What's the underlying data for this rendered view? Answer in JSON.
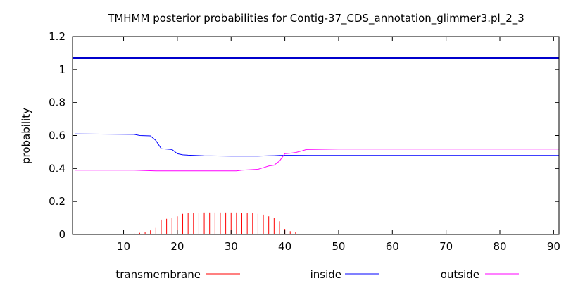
{
  "chart_data": {
    "type": "line",
    "title": "TMHMM posterior probabilities for Contig-37_CDS_annotation_glimmer3.pl_2_3",
    "xlabel": "",
    "ylabel": "probability",
    "xlim": [
      0.5,
      91
    ],
    "ylim": [
      0,
      1.2
    ],
    "x_ticks": [
      10,
      20,
      30,
      40,
      50,
      60,
      70,
      80,
      90
    ],
    "y_ticks": [
      "0",
      "0.2",
      "0.4",
      "0.6",
      "0.8",
      "1",
      "1.2"
    ],
    "grid": false,
    "legend_position": "bottom",
    "reference_line": {
      "y": 1.07,
      "color": "#0000cc"
    },
    "series": [
      {
        "name": "transmembrane",
        "style": "impulses",
        "color": "#ff0000",
        "x": [
          12,
          13,
          14,
          15,
          16,
          17,
          18,
          19,
          20,
          21,
          22,
          23,
          24,
          25,
          26,
          27,
          28,
          29,
          30,
          31,
          32,
          33,
          34,
          35,
          36,
          37,
          38,
          39,
          40,
          41,
          42,
          43
        ],
        "values": [
          0.005,
          0.01,
          0.015,
          0.025,
          0.04,
          0.09,
          0.095,
          0.1,
          0.11,
          0.125,
          0.13,
          0.13,
          0.13,
          0.133,
          0.133,
          0.133,
          0.133,
          0.133,
          0.133,
          0.133,
          0.13,
          0.13,
          0.13,
          0.125,
          0.12,
          0.11,
          0.1,
          0.08,
          0.03,
          0.02,
          0.015,
          0.005
        ]
      },
      {
        "name": "inside",
        "style": "line",
        "color": "#0000ff",
        "x": [
          1,
          12,
          13,
          15,
          16,
          17,
          18,
          19,
          20,
          21,
          22,
          25,
          30,
          35,
          37,
          38,
          39,
          40,
          41,
          45,
          60,
          91
        ],
        "values": [
          0.61,
          0.607,
          0.6,
          0.598,
          0.57,
          0.52,
          0.518,
          0.515,
          0.49,
          0.483,
          0.481,
          0.477,
          0.475,
          0.475,
          0.477,
          0.478,
          0.479,
          0.48,
          0.48,
          0.479,
          0.479,
          0.479
        ]
      },
      {
        "name": "outside",
        "style": "line",
        "color": "#ff00ff",
        "x": [
          1,
          12,
          16,
          20,
          25,
          31,
          32,
          35,
          36,
          37,
          38,
          39,
          40,
          41,
          42,
          43,
          44,
          50,
          91
        ],
        "values": [
          0.39,
          0.39,
          0.385,
          0.385,
          0.385,
          0.385,
          0.39,
          0.395,
          0.405,
          0.415,
          0.42,
          0.445,
          0.49,
          0.493,
          0.497,
          0.505,
          0.515,
          0.518,
          0.518
        ]
      }
    ]
  }
}
